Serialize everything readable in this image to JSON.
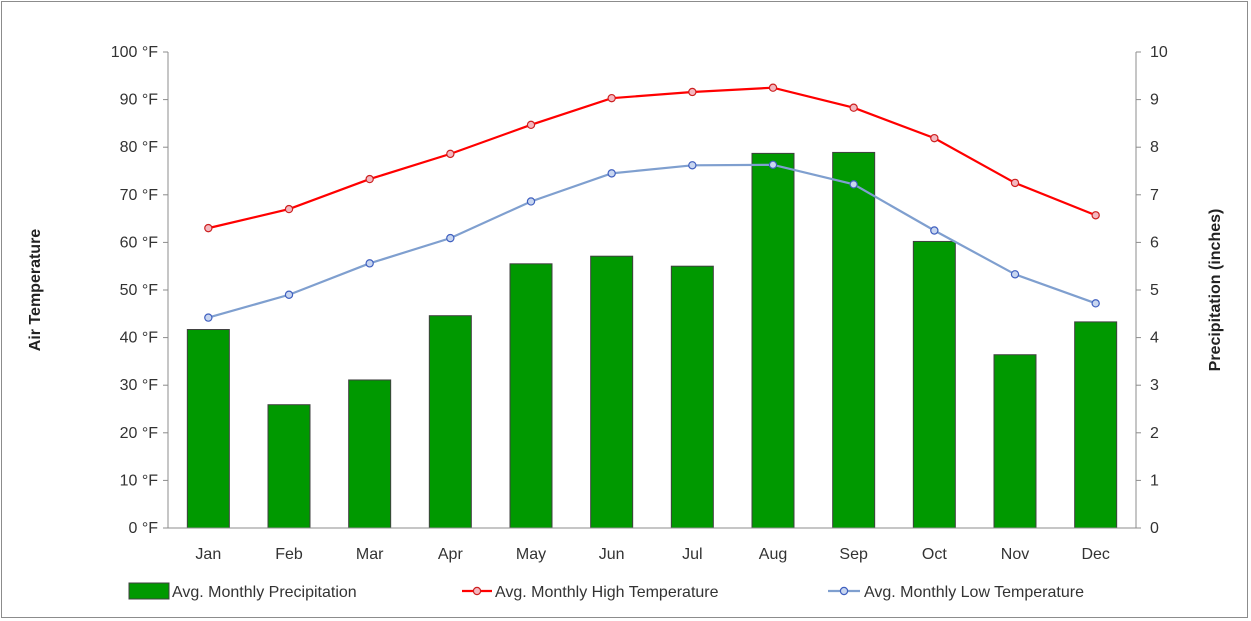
{
  "chart_data": {
    "type": "bar",
    "categories": [
      "Jan",
      "Feb",
      "Mar",
      "Apr",
      "May",
      "Jun",
      "Jul",
      "Aug",
      "Sep",
      "Oct",
      "Nov",
      "Dec"
    ],
    "series": [
      {
        "name": "Avg. Monthly Precipitation",
        "type": "bar",
        "axis": "right",
        "color": "#009900",
        "values": [
          4.17,
          2.59,
          3.11,
          4.46,
          5.55,
          5.71,
          5.5,
          7.87,
          7.89,
          6.02,
          3.64,
          4.33
        ]
      },
      {
        "name": "Avg. Monthly High Temperature",
        "type": "line",
        "axis": "left",
        "color": "#ff0000",
        "values": [
          63.0,
          67.0,
          73.3,
          78.6,
          84.7,
          90.3,
          91.6,
          92.5,
          88.3,
          81.9,
          72.5,
          65.7
        ]
      },
      {
        "name": "Avg. Monthly Low Temperature",
        "type": "line",
        "axis": "left",
        "color": "#7f9fcf",
        "values": [
          44.2,
          49.0,
          55.6,
          60.9,
          68.6,
          74.5,
          76.2,
          76.3,
          72.2,
          62.5,
          53.3,
          47.2
        ]
      }
    ],
    "y_left": {
      "label": "Air Temperature",
      "min": 0,
      "max": 100,
      "step": 10,
      "ticks": [
        "0 °F",
        "10 °F",
        "20 °F",
        "30 °F",
        "40 °F",
        "50 °F",
        "60 °F",
        "70 °F",
        "80 °F",
        "90 °F",
        "100 °F"
      ]
    },
    "y_right": {
      "label": "Precipitation (inches)",
      "min": 0,
      "max": 10,
      "step": 1,
      "ticks": [
        "0",
        "1",
        "2",
        "3",
        "4",
        "5",
        "6",
        "7",
        "8",
        "9",
        "10"
      ]
    },
    "grid": false,
    "legend_position": "bottom"
  }
}
